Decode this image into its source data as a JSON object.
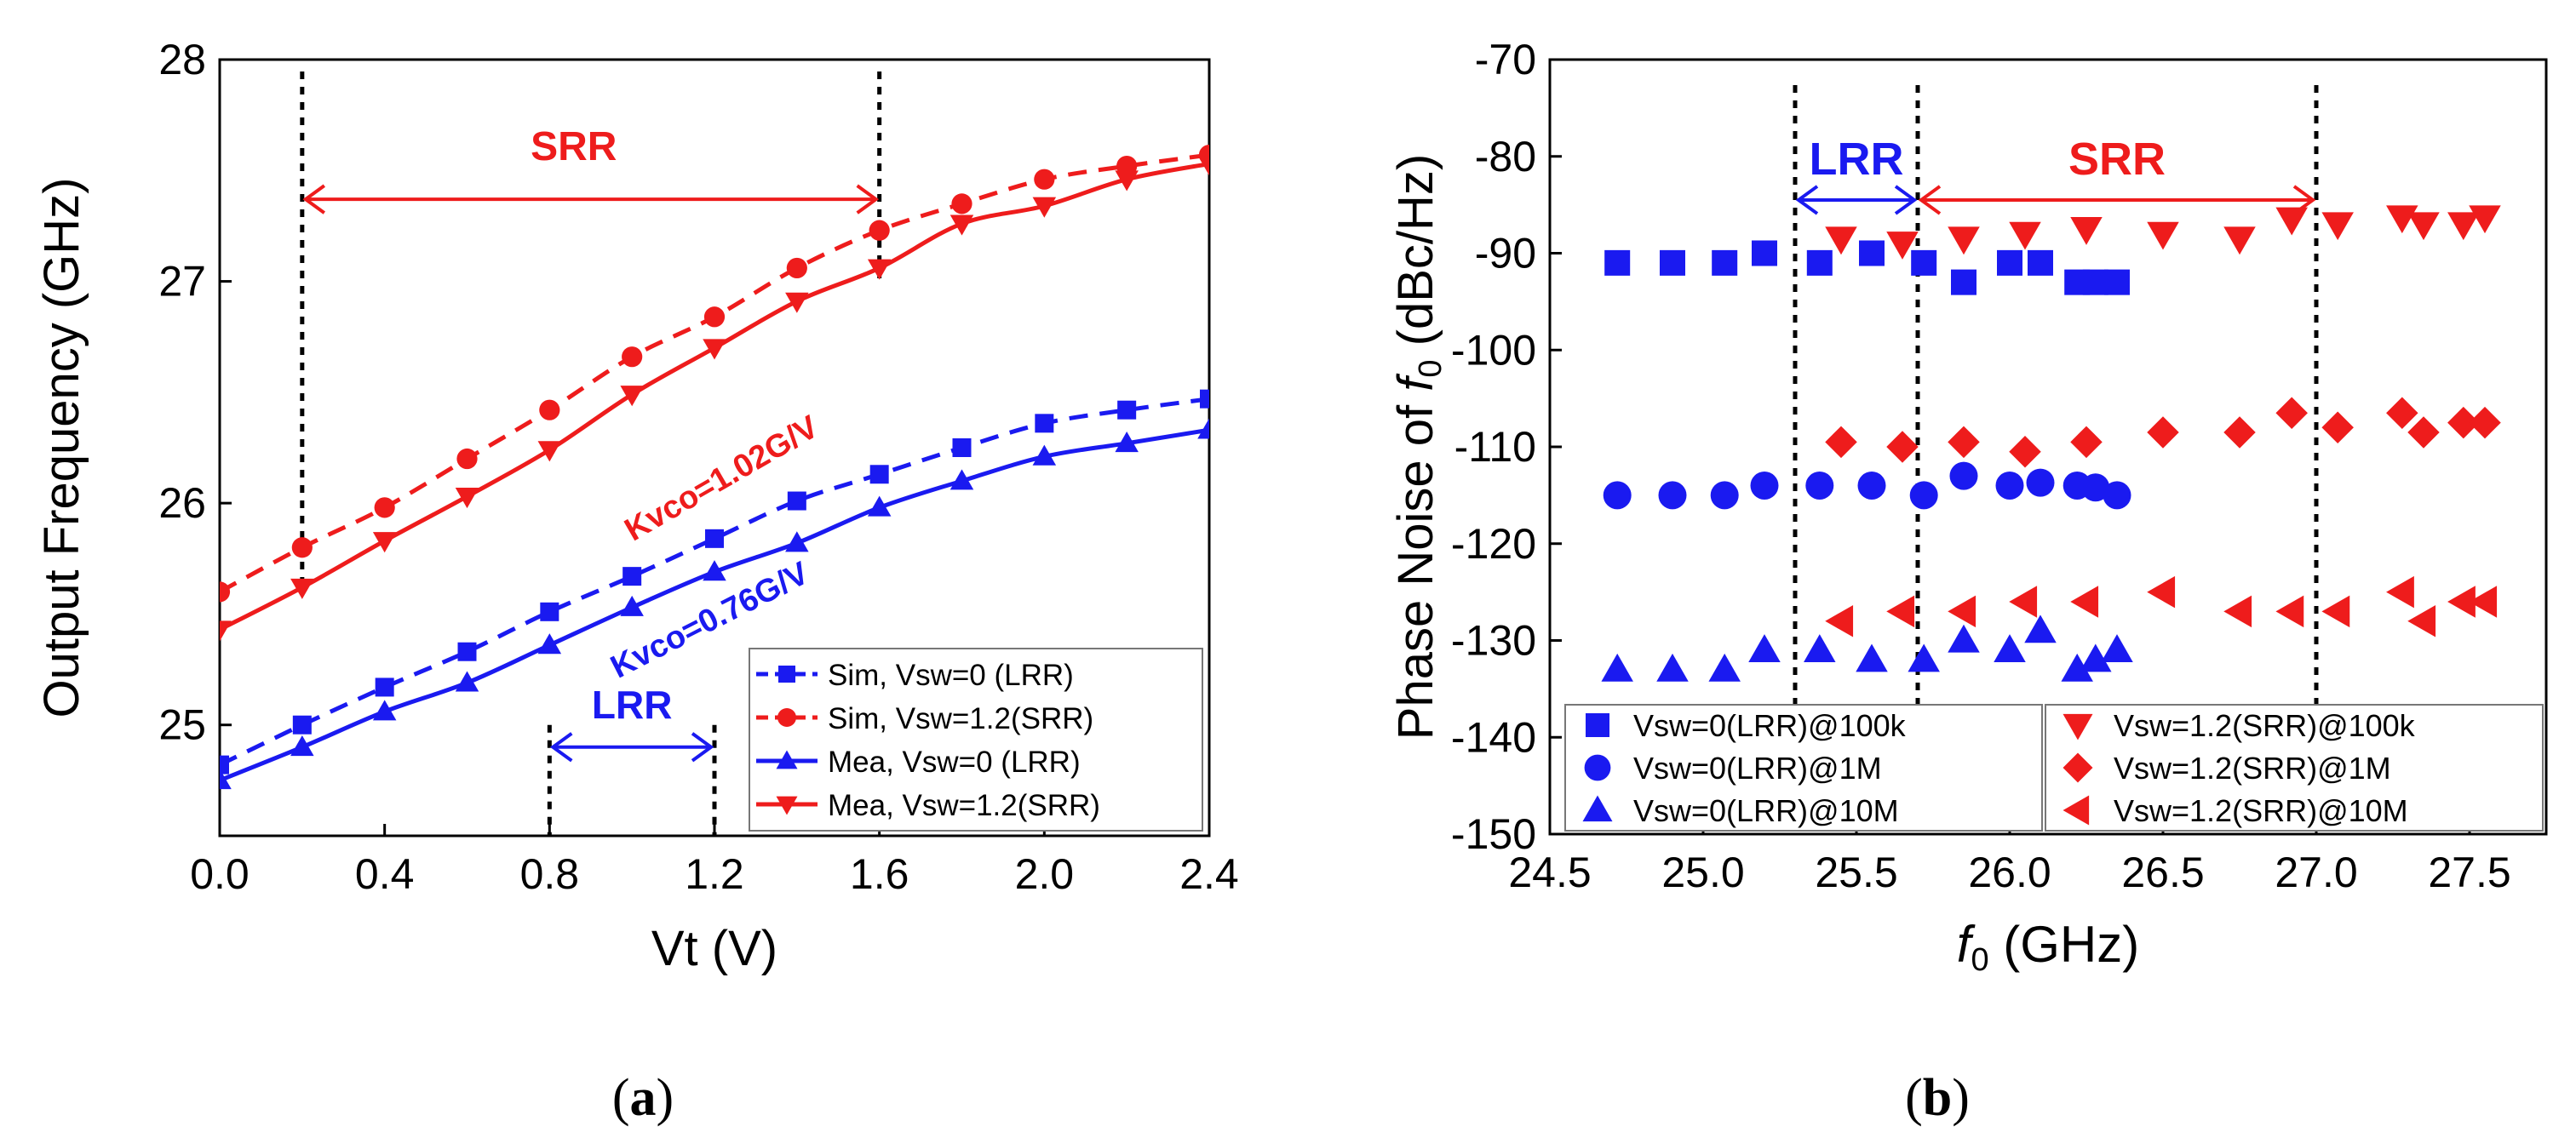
{
  "chart_data": [
    {
      "type": "line",
      "panel_label": "a",
      "xlabel": "Vt (V)",
      "ylabel": "Output Frequency (GHz)",
      "xlim": [
        0.0,
        2.4
      ],
      "ylim": [
        24.5,
        28.0
      ],
      "xticks": [
        "0.0",
        "0.4",
        "0.8",
        "1.2",
        "1.6",
        "2.0",
        "2.4"
      ],
      "yticks": [
        "25",
        "26",
        "27",
        "28"
      ],
      "legend_position": "bottom-right",
      "series": [
        {
          "name": "Sim, Vsw=0    (LRR)",
          "color": "#1a1af0",
          "line": "dashed",
          "marker": "square",
          "x": [
            0.0,
            0.2,
            0.4,
            0.6,
            0.8,
            1.0,
            1.2,
            1.4,
            1.6,
            1.8,
            2.0,
            2.2,
            2.4
          ],
          "y": [
            24.82,
            25.0,
            25.17,
            25.33,
            25.51,
            25.67,
            25.84,
            26.01,
            26.13,
            26.25,
            26.36,
            26.42,
            26.47
          ]
        },
        {
          "name": "Sim, Vsw=1.2(SRR)",
          "color": "#ee1c1c",
          "line": "dashed",
          "marker": "circle",
          "x": [
            0.0,
            0.2,
            0.4,
            0.6,
            0.8,
            1.0,
            1.2,
            1.4,
            1.6,
            1.8,
            2.0,
            2.2,
            2.4
          ],
          "y": [
            25.6,
            25.8,
            25.98,
            26.2,
            26.42,
            26.66,
            26.84,
            27.06,
            27.23,
            27.35,
            27.46,
            27.52,
            27.57
          ]
        },
        {
          "name": "Mea, Vsw=0    (LRR)",
          "color": "#1a1af0",
          "line": "solid",
          "marker": "triangle-up",
          "x": [
            0.0,
            0.2,
            0.4,
            0.6,
            0.8,
            1.0,
            1.2,
            1.4,
            1.6,
            1.8,
            2.0,
            2.2,
            2.4
          ],
          "y": [
            24.75,
            24.9,
            25.06,
            25.19,
            25.36,
            25.53,
            25.69,
            25.82,
            25.98,
            26.1,
            26.21,
            26.27,
            26.33
          ]
        },
        {
          "name": "Mea, Vsw=1.2(SRR)",
          "color": "#ee1c1c",
          "line": "solid",
          "marker": "triangle-down",
          "x": [
            0.0,
            0.2,
            0.4,
            0.6,
            0.8,
            1.0,
            1.2,
            1.4,
            1.6,
            1.8,
            2.0,
            2.2,
            2.4
          ],
          "y": [
            25.43,
            25.62,
            25.83,
            26.03,
            26.24,
            26.49,
            26.7,
            26.91,
            27.06,
            27.26,
            27.34,
            27.46,
            27.53
          ]
        }
      ],
      "vlines": [
        0.2,
        1.6,
        0.8,
        1.2
      ],
      "annotations": [
        {
          "text": "SRR",
          "color": "#ee1c1c",
          "type": "range-arrow",
          "x_range": [
            0.2,
            1.6
          ],
          "y": 27.37
        },
        {
          "text": "LRR",
          "color": "#1a1af0",
          "type": "range-arrow",
          "x_range": [
            0.8,
            1.2
          ],
          "y": 24.9
        },
        {
          "text": "Kvco=1.02G/V",
          "color": "#ee1c1c",
          "type": "label",
          "x": 1.23,
          "y": 26.07
        },
        {
          "text": "Kvco=0.76G/V",
          "color": "#1a1af0",
          "type": "label",
          "x": 1.2,
          "y": 25.43
        }
      ]
    },
    {
      "type": "scatter",
      "panel_label": "b",
      "xlabel_italic": "f",
      "xlabel_sub": "0",
      "xlabel_rest": " (GHz)",
      "ylabel_prefix": "Phase Noise of ",
      "ylabel_italic": "f",
      "ylabel_sub": "0",
      "ylabel_suffix": " (dBc/Hz)",
      "xlim": [
        24.5,
        27.75
      ],
      "ylim": [
        -150,
        -70
      ],
      "xticks": [
        "24.5",
        "25.0",
        "25.5",
        "26.0",
        "26.5",
        "27.0",
        "27.5"
      ],
      "yticks": [
        "-70",
        "-80",
        "-90",
        "-100",
        "-110",
        "-120",
        "-130",
        "-140",
        "-150"
      ],
      "legend_position": "bottom",
      "series": [
        {
          "name": "Vsw=0(LRR)@100k",
          "color": "#1a1af0",
          "marker": "square",
          "x": [
            24.72,
            24.9,
            25.07,
            25.2,
            25.38,
            25.55,
            25.72,
            25.85,
            26.0,
            26.1,
            26.22,
            26.28,
            26.35
          ],
          "y": [
            -91,
            -91,
            -91,
            -90,
            -91,
            -90,
            -91,
            -93,
            -91,
            -91,
            -93,
            -93,
            -93
          ]
        },
        {
          "name": "Vsw=0(LRR)@1M",
          "color": "#1a1af0",
          "marker": "circle",
          "x": [
            24.72,
            24.9,
            25.07,
            25.2,
            25.38,
            25.55,
            25.72,
            25.85,
            26.0,
            26.1,
            26.22,
            26.28,
            26.35
          ],
          "y": [
            -115,
            -115,
            -115,
            -114,
            -114,
            -114,
            -115,
            -113,
            -114,
            -113.7,
            -114,
            -114.2,
            -115
          ]
        },
        {
          "name": "Vsw=0(LRR)@10M",
          "color": "#1a1af0",
          "marker": "triangle-up",
          "x": [
            24.72,
            24.9,
            25.07,
            25.2,
            25.38,
            25.55,
            25.72,
            25.85,
            26.0,
            26.1,
            26.22,
            26.28,
            26.35
          ],
          "y": [
            -133,
            -133,
            -133,
            -131,
            -131,
            -132,
            -132,
            -130,
            -131,
            -129,
            -133,
            -132,
            -131
          ]
        },
        {
          "name": "Vsw=1.2(SRR)@100k",
          "color": "#ee1c1c",
          "marker": "triangle-down",
          "x": [
            25.45,
            25.65,
            25.85,
            26.05,
            26.25,
            26.5,
            26.75,
            26.92,
            27.07,
            27.28,
            27.35,
            27.48,
            27.55
          ],
          "y": [
            -88.5,
            -89,
            -88.5,
            -88,
            -87.5,
            -88,
            -88.5,
            -86.5,
            -87,
            -86.3,
            -87,
            -87,
            -86.3
          ]
        },
        {
          "name": "Vsw=1.2(SRR)@1M",
          "color": "#ee1c1c",
          "marker": "diamond",
          "x": [
            25.45,
            25.65,
            25.85,
            26.05,
            26.25,
            26.5,
            26.75,
            26.92,
            27.07,
            27.28,
            27.35,
            27.48,
            27.55
          ],
          "y": [
            -109.5,
            -110,
            -109.5,
            -110.5,
            -109.5,
            -108.5,
            -108.5,
            -106.5,
            -108,
            -106.5,
            -108.5,
            -107.5,
            -107.5
          ]
        },
        {
          "name": "Vsw=1.2(SRR)@10M",
          "color": "#ee1c1c",
          "marker": "triangle-left",
          "x": [
            25.45,
            25.65,
            25.85,
            26.05,
            26.25,
            26.5,
            26.75,
            26.92,
            27.07,
            27.28,
            27.35,
            27.48,
            27.55
          ],
          "y": [
            -128,
            -127,
            -127,
            -126,
            -126,
            -125,
            -127,
            -127,
            -127,
            -125,
            -128,
            -126,
            -126
          ]
        }
      ],
      "vlines": [
        25.3,
        25.7,
        27.0
      ],
      "annotations": [
        {
          "text": "LRR",
          "color": "#1a1af0",
          "type": "range-arrow",
          "x_range": [
            25.3,
            25.7
          ],
          "y": -84.5
        },
        {
          "text": "SRR",
          "color": "#ee1c1c",
          "type": "range-arrow",
          "x_range": [
            25.7,
            27.0
          ],
          "y": -84.5
        }
      ]
    }
  ]
}
